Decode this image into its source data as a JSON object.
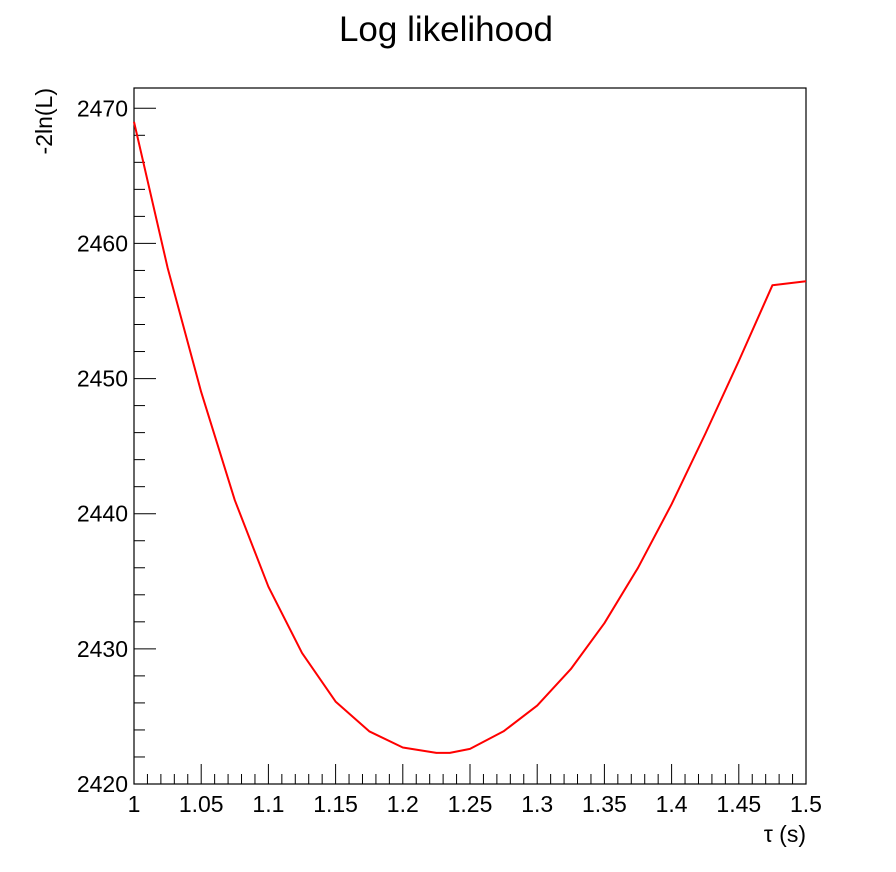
{
  "chart_data": {
    "type": "line",
    "title": "Log likelihood",
    "xlabel": "τ (s)",
    "ylabel": "-2ln(L)",
    "xlim": [
      1.0,
      1.5
    ],
    "ylim": [
      2420,
      2471.5
    ],
    "grid": false,
    "x_ticks": [
      "1",
      "1.05",
      "1.1",
      "1.15",
      "1.2",
      "1.25",
      "1.3",
      "1.35",
      "1.4",
      "1.45",
      "1.5"
    ],
    "y_ticks": [
      "2420",
      "2430",
      "2440",
      "2450",
      "2460",
      "2470"
    ],
    "series": [
      {
        "color": "#ff0000",
        "x": [
          1.0,
          1.025,
          1.05,
          1.075,
          1.1,
          1.125,
          1.15,
          1.175,
          1.2,
          1.225,
          1.235,
          1.25,
          1.275,
          1.3,
          1.325,
          1.35,
          1.375,
          1.4,
          1.425,
          1.45,
          1.475,
          1.5
        ],
        "y": [
          2469.0,
          2458.2,
          2449.0,
          2441.0,
          2434.6,
          2429.7,
          2426.1,
          2423.9,
          2422.7,
          2422.3,
          2422.3,
          2422.6,
          2423.9,
          2425.8,
          2428.5,
          2431.9,
          2436.0,
          2440.7,
          2445.9,
          2451.3,
          2456.9,
          2457.2
        ]
      }
    ]
  }
}
